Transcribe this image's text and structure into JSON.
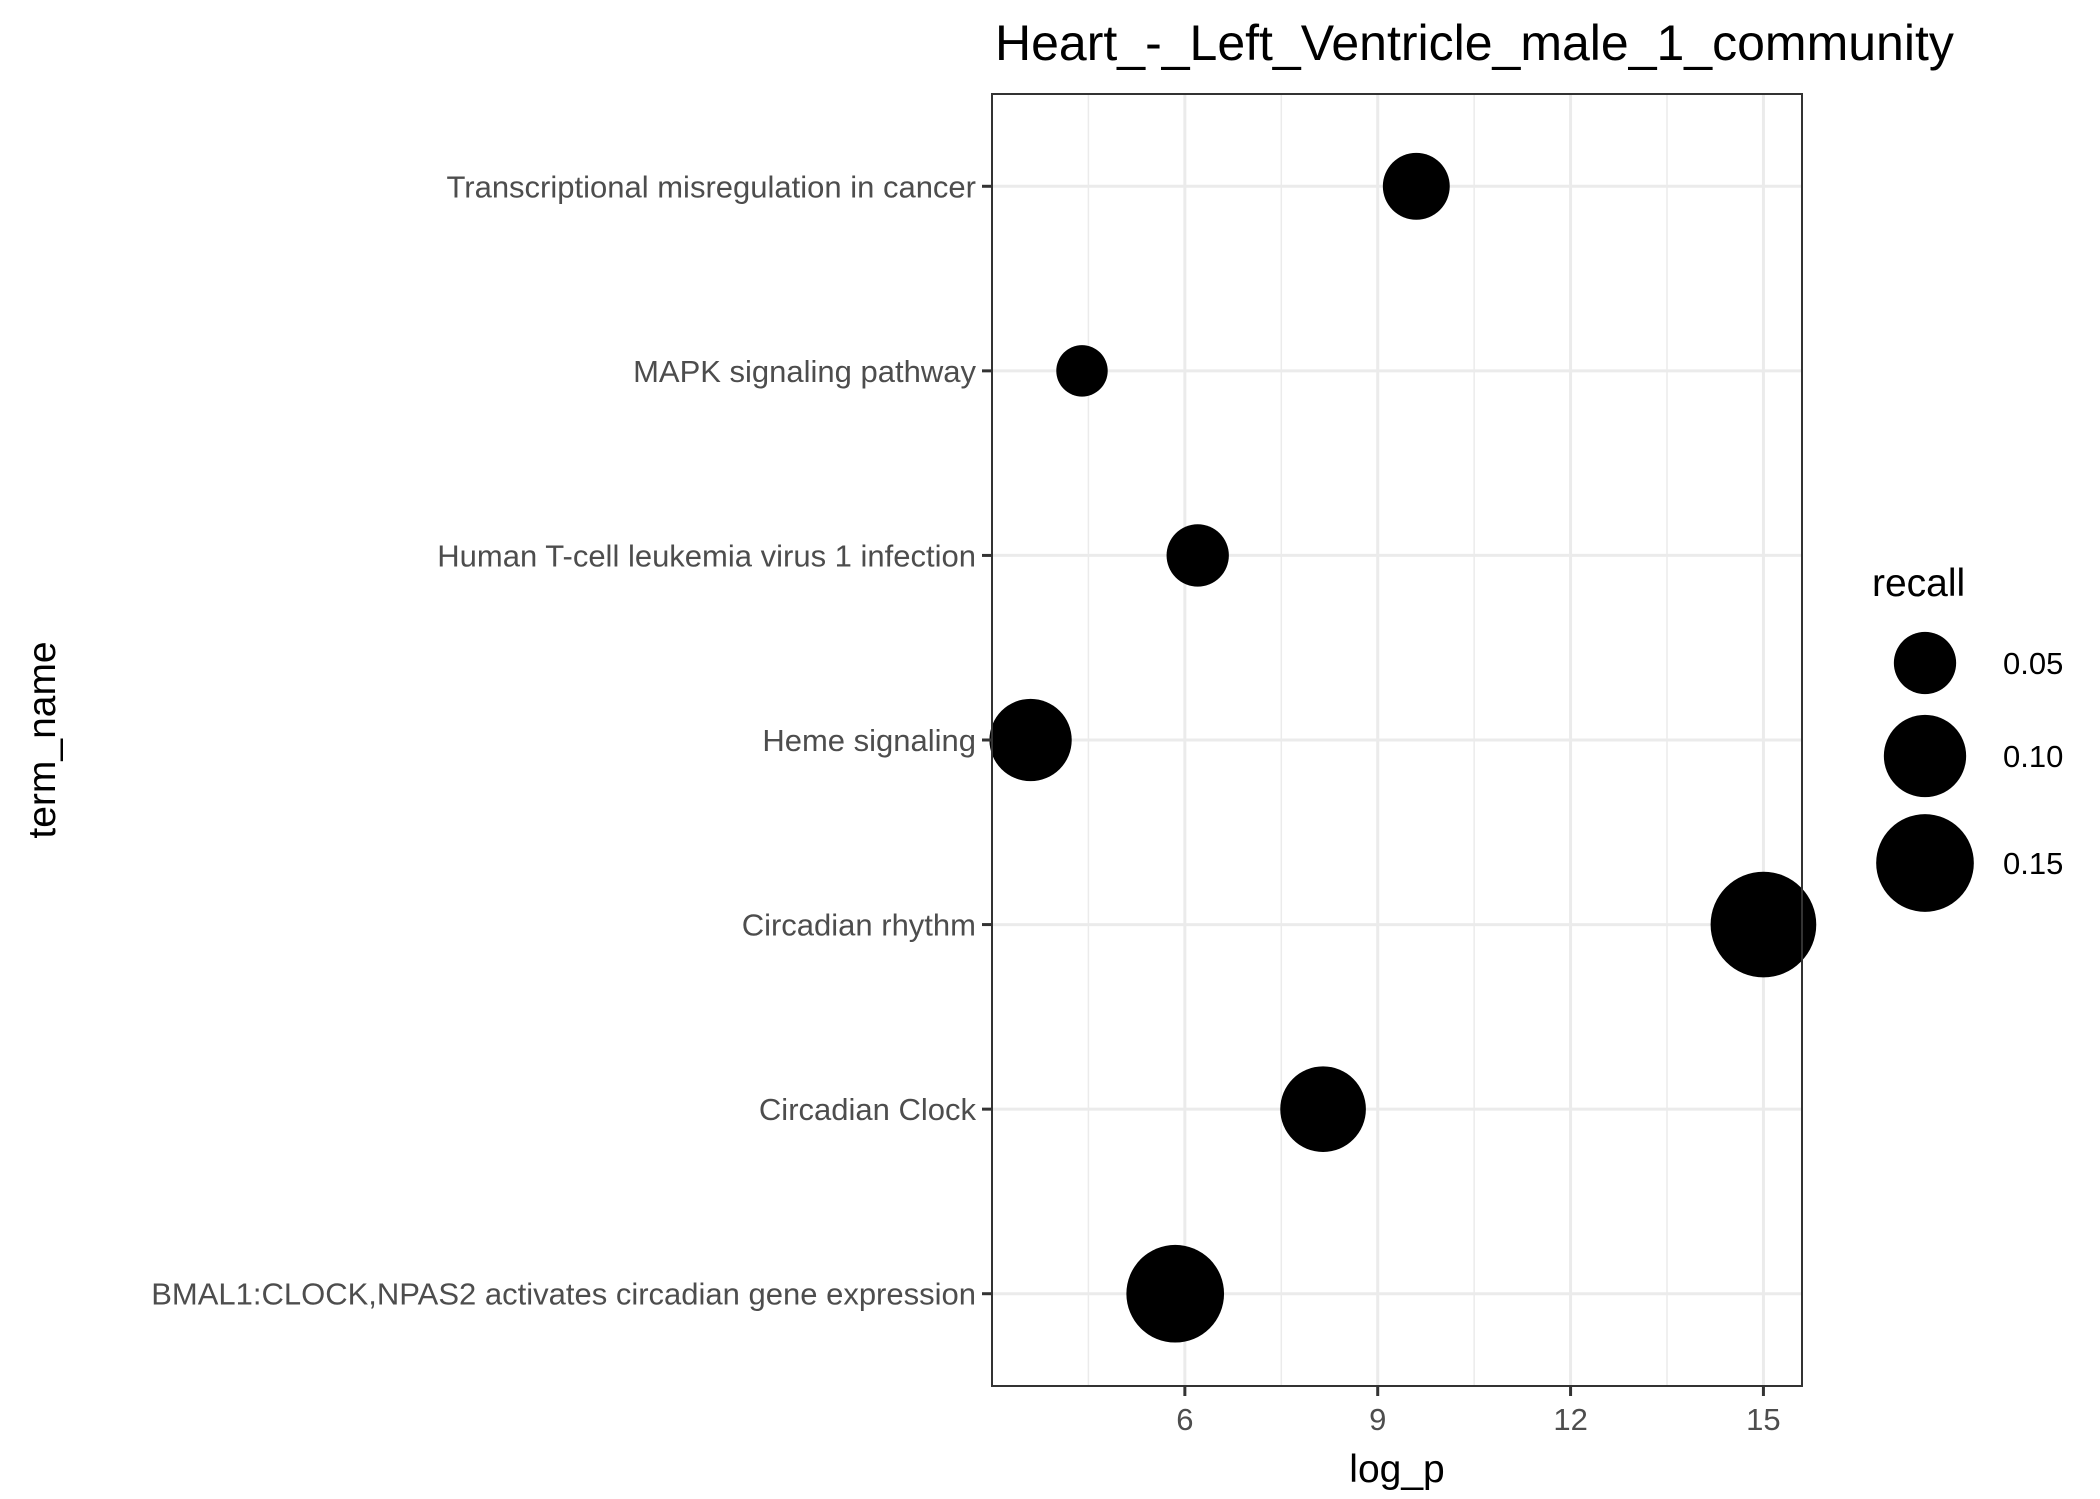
{
  "chart_data": {
    "type": "scatter",
    "title": "Heart_-_Left_Ventricle_male_1_community",
    "xlabel": "log_p",
    "ylabel": "term_name",
    "xlim": [
      3.0,
      15.6
    ],
    "xticks": [
      6,
      9,
      12,
      15
    ],
    "grid": true,
    "categories": [
      "Transcriptional misregulation in cancer",
      "MAPK signaling pathway",
      "Human T-cell leukemia virus 1 infection",
      "Heme signaling",
      "Circadian rhythm",
      "Circadian Clock",
      "BMAL1:CLOCK,NPAS2 activates circadian gene expression"
    ],
    "points": [
      {
        "term": "Transcriptional misregulation in cancer",
        "log_p": 9.6,
        "recall": 0.06
      },
      {
        "term": "MAPK signaling pathway",
        "log_p": 4.4,
        "recall": 0.03
      },
      {
        "term": "Human T-cell leukemia virus 1 infection",
        "log_p": 6.2,
        "recall": 0.05
      },
      {
        "term": "Heme signaling",
        "log_p": 3.6,
        "recall": 0.1
      },
      {
        "term": "Circadian rhythm",
        "log_p": 15.0,
        "recall": 0.18
      },
      {
        "term": "Circadian Clock",
        "log_p": 8.15,
        "recall": 0.11
      },
      {
        "term": "BMAL1:CLOCK,NPAS2 activates circadian gene expression",
        "log_p": 5.85,
        "recall": 0.15
      }
    ],
    "legend": {
      "title": "recall",
      "placement": "right",
      "entries": [
        {
          "label": "0.05",
          "value": 0.05
        },
        {
          "label": "0.10",
          "value": 0.1
        },
        {
          "label": "0.15",
          "value": 0.15
        }
      ]
    },
    "colors": {
      "point": "#000000",
      "grid": "#ebebeb",
      "panel_border": "#333333",
      "tick_text": "#4d4d4d"
    }
  }
}
